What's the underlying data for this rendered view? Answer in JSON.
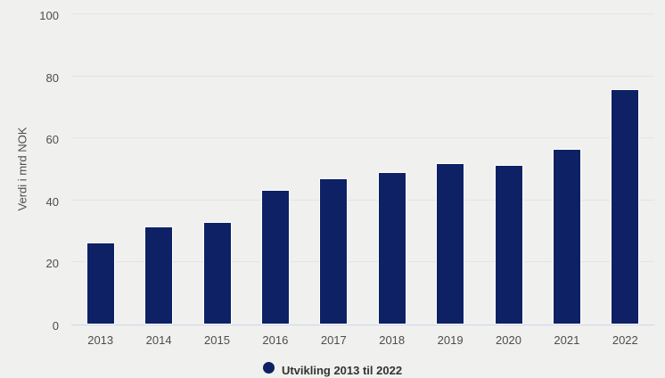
{
  "colors": {
    "background": "#f0f0ee",
    "bar_fill": "#0d2164",
    "bar_border": "#ffffff",
    "gridline": "#e4e4e1",
    "axis_line": "#ccd6eb",
    "tick_text": "#4d4d4d",
    "legend_text": "#333333"
  },
  "chart_data": {
    "type": "bar",
    "title": "",
    "categories": [
      "2013",
      "2014",
      "2015",
      "2016",
      "2017",
      "2018",
      "2019",
      "2020",
      "2021",
      "2022"
    ],
    "series": [
      {
        "name": "Utvikling 2013 til 2022",
        "values": [
          26.5,
          31.5,
          33,
          43.5,
          47,
          49,
          52,
          51.5,
          56.5,
          76
        ]
      }
    ],
    "xlabel": "",
    "ylabel": "Verdi i mrd NOK",
    "ylim": [
      0,
      100
    ],
    "yticks": [
      0,
      20,
      40,
      60,
      80,
      100
    ],
    "grid": true,
    "legend": {
      "label": "Utvikling 2013 til 2022",
      "position": "bottom-center",
      "marker": "circle"
    }
  },
  "layout_note": "legend row is partially cut off by the bottom edge of the image"
}
